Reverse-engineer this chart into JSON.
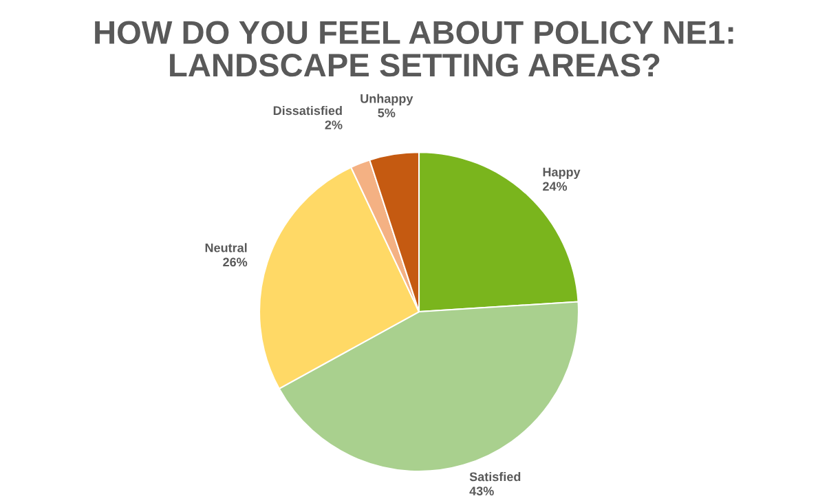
{
  "chart_data": {
    "type": "pie",
    "title": "HOW DO YOU FEEL ABOUT POLICY NE1:\nLANDSCAPE SETTING AREAS?",
    "categories": [
      "Happy",
      "Satisfied",
      "Neutral",
      "Dissatisfied",
      "Unhappy"
    ],
    "values": [
      24,
      43,
      26,
      2,
      5
    ],
    "colors": [
      "#7ab51d",
      "#a9d08e",
      "#ffd966",
      "#f4b183",
      "#c55a11"
    ],
    "value_labels": [
      "24%",
      "43%",
      "26%",
      "2%",
      "5%"
    ],
    "legend": false
  }
}
